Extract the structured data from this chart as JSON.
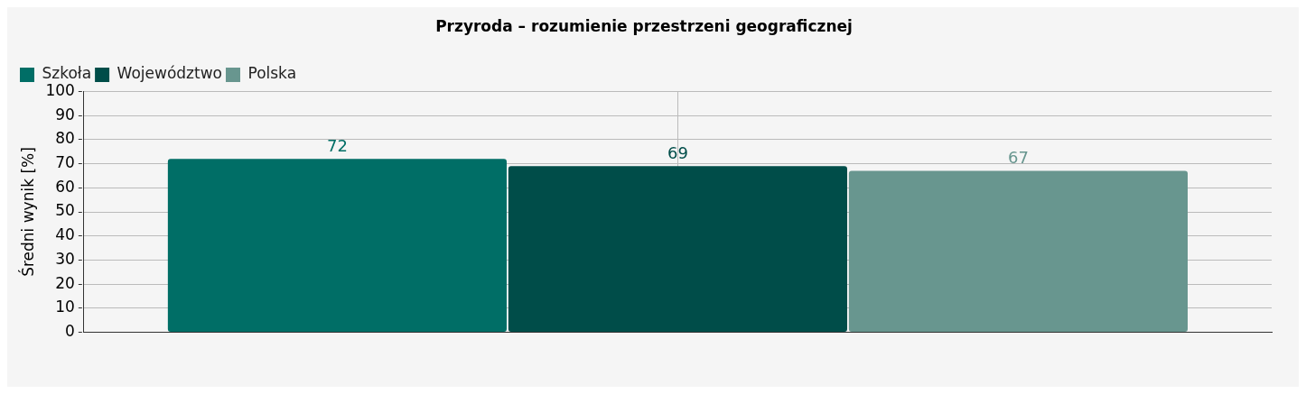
{
  "chart_data": {
    "type": "bar",
    "title": "Przyroda – rozumienie przestrzeni geograficznej",
    "ylabel": "Średni wynik [%]",
    "categories": [
      null
    ],
    "series": [
      {
        "name": "Szkoła",
        "color": "#006e66",
        "values": [
          72
        ]
      },
      {
        "name": "Województwo",
        "color": "#004d49",
        "values": [
          69
        ]
      },
      {
        "name": "Polska",
        "color": "#68968f",
        "values": [
          67
        ]
      }
    ],
    "ylim": [
      0,
      100
    ],
    "yticks": [
      0,
      10,
      20,
      30,
      40,
      50,
      60,
      70,
      80,
      90,
      100
    ],
    "grid": true,
    "legend": "top left",
    "data_labels": true
  }
}
